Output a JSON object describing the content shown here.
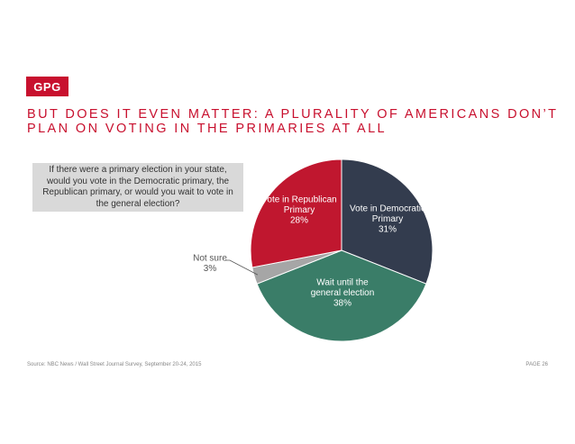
{
  "logo": {
    "text": "GPG"
  },
  "headline": {
    "line1": "BUT DOES IT EVEN MATTER: A PLURALITY OF AMERICANS DON’T",
    "line2": "PLAN ON VOTING IN THE PRIMARIES AT ALL"
  },
  "question": "If there were a primary election in your state, would you vote in the Democratic primary, the Republican primary, or would you wait to vote in the general election?",
  "chart_data": {
    "type": "pie",
    "title": "",
    "slices": [
      {
        "label_lines": [
          "Vote in Democratic",
          "Primary"
        ],
        "value": 31,
        "pct_label": "31%",
        "color": "#333c4e",
        "label_color": "#ffffff"
      },
      {
        "label_lines": [
          "Wait until the",
          "general election"
        ],
        "value": 38,
        "pct_label": "38%",
        "color": "#3a7d68",
        "label_color": "#ffffff"
      },
      {
        "label_lines": [
          "Not sure"
        ],
        "value": 3,
        "pct_label": "3%",
        "color": "#a6a6a6",
        "label_color": "#555555"
      },
      {
        "label_lines": [
          "Vote in Republican",
          "Primary"
        ],
        "value": 28,
        "pct_label": "28%",
        "color": "#c0172f",
        "label_color": "#ffffff"
      }
    ],
    "start_angle": "12 o'clock",
    "direction": "clockwise"
  },
  "footer": {
    "source": "Source: NBC News / Wall Street Journal Survey, September 20-24, 2015",
    "page": "PAGE 26"
  }
}
